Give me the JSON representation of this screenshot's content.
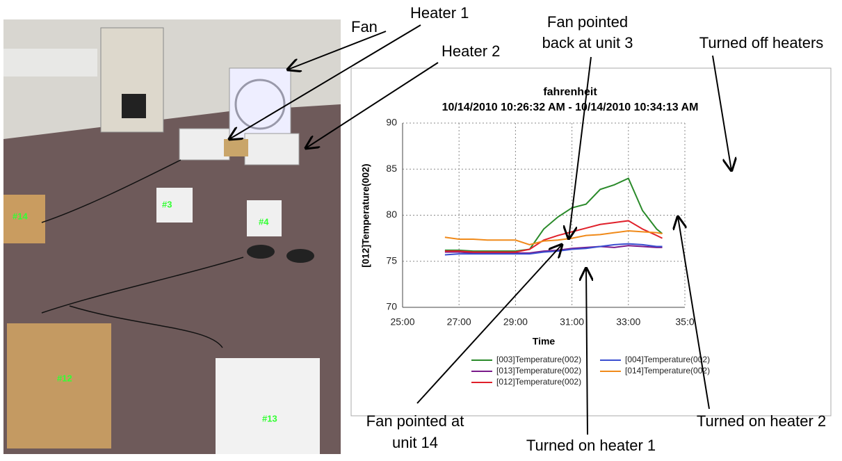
{
  "photo_labels": [
    "#14",
    "#3",
    "#4",
    "#12",
    "#13"
  ],
  "annotations": [
    [
      "Fan"
    ],
    [
      "Heater 1"
    ],
    [
      "Heater 2"
    ],
    [
      "Fan pointed",
      "back at unit 3"
    ],
    [
      "Turned off heaters"
    ],
    [
      "Turned on heater 2"
    ],
    [
      "Turned on heater 1"
    ],
    [
      "Fan pointed at",
      "unit 14"
    ]
  ],
  "chart_data": {
    "type": "line",
    "title": "fahrenheit",
    "subtitle": "10/14/2010 10:26:32 AM - 10/14/2010 10:34:13 AM",
    "x_label": "Time",
    "y_label": "[012]Temperature(002)",
    "x": [
      26.5,
      27,
      27.5,
      28,
      28.5,
      29,
      29.5,
      30,
      30.5,
      31,
      31.5,
      32,
      32.5,
      33,
      33.5,
      34,
      34.2
    ],
    "xlim": [
      25,
      35
    ],
    "xticks": [
      {
        "value": 25,
        "label": "25:00"
      },
      {
        "value": 27,
        "label": "27:00"
      },
      {
        "value": 29,
        "label": "29:00"
      },
      {
        "value": 31,
        "label": "31:00"
      },
      {
        "value": 33,
        "label": "33:00"
      },
      {
        "value": 35,
        "label": "35:0"
      }
    ],
    "ylim": [
      70,
      90
    ],
    "yticks": [
      70,
      75,
      80,
      85,
      90
    ],
    "grid": true,
    "series": [
      {
        "name": "[003]Temperature(002)",
        "color": "#2a8a2a",
        "values": [
          76.2,
          76.2,
          76.1,
          76.1,
          76.1,
          76.1,
          76.3,
          78.5,
          79.8,
          80.8,
          81.2,
          82.8,
          83.3,
          84,
          80.5,
          78.5,
          78
        ]
      },
      {
        "name": "[013]Temperature(002)",
        "color": "#7a1a8a",
        "values": [
          76,
          76,
          75.9,
          75.9,
          75.9,
          75.9,
          75.9,
          76.1,
          76.2,
          76.4,
          76.5,
          76.6,
          76.5,
          76.7,
          76.6,
          76.5,
          76.5
        ]
      },
      {
        "name": "[012]Temperature(002)",
        "color": "#e0202a",
        "values": [
          76.1,
          76.1,
          76,
          76,
          76,
          76,
          76.3,
          77.3,
          77.8,
          78.2,
          78.6,
          79,
          79.2,
          79.4,
          78.5,
          77.8,
          77.5
        ]
      },
      {
        "name": "[004]Temperature(002)",
        "color": "#3a4ed0",
        "values": [
          75.7,
          75.8,
          75.8,
          75.8,
          75.8,
          75.8,
          75.8,
          76,
          76.1,
          76.3,
          76.4,
          76.6,
          76.8,
          76.9,
          76.8,
          76.6,
          76.6
        ]
      },
      {
        "name": "[014]Temperature(002)",
        "color": "#f08a1a",
        "values": [
          77.6,
          77.4,
          77.4,
          77.3,
          77.3,
          77.3,
          76.8,
          77.2,
          77.3,
          77.5,
          77.8,
          77.9,
          78.1,
          78.3,
          78.2,
          78.1,
          78
        ]
      }
    ]
  }
}
